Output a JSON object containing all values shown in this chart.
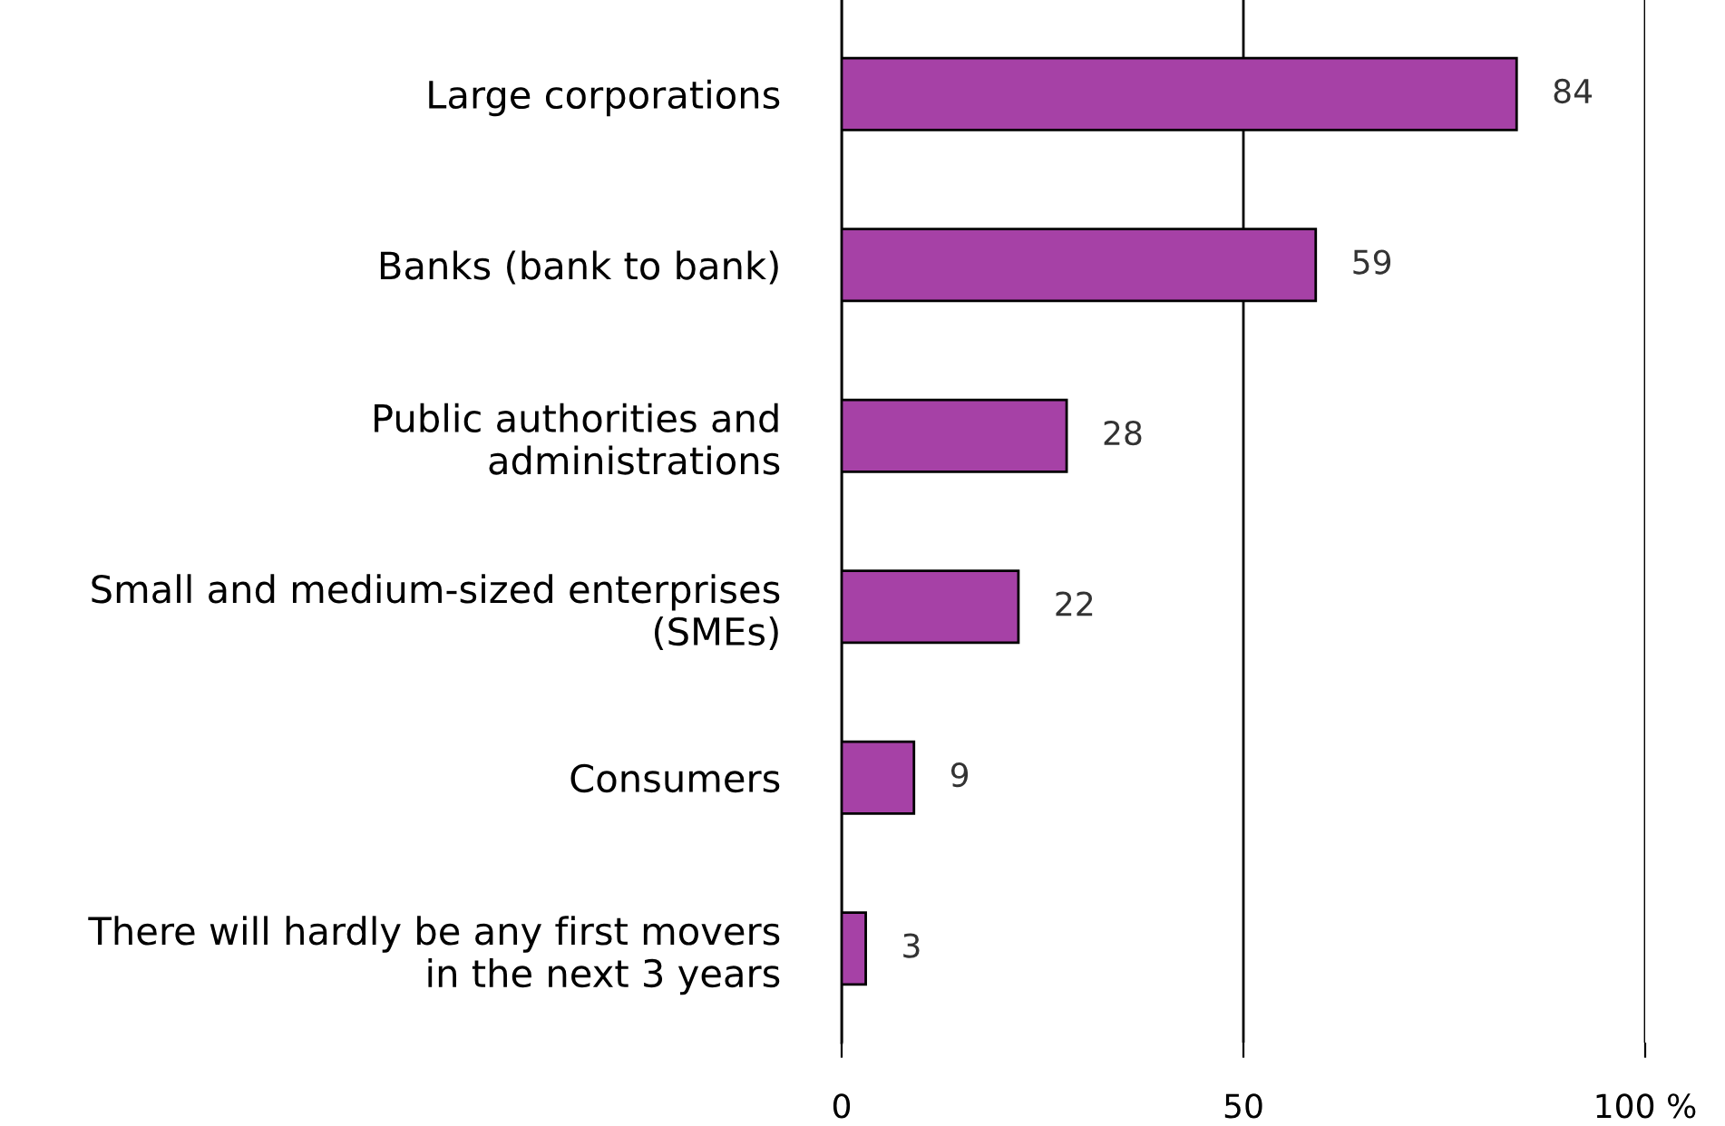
{
  "chart_data": {
    "type": "bar",
    "orientation": "horizontal",
    "categories": [
      "Large corporations",
      "Banks (bank to bank)",
      "Public authorities and\nadministrations",
      "Small and medium-sized enterprises\n(SMEs)",
      "Consumers",
      "There will hardly be any first movers\nin the next 3 years"
    ],
    "values": [
      84,
      59,
      28,
      22,
      9,
      3
    ],
    "color": "#a641a6",
    "xlim": [
      0,
      100
    ],
    "xticks": [
      0,
      50,
      {
        "value": 100,
        "label": "100 %"
      }
    ],
    "grid": "x",
    "data_labels": true
  }
}
